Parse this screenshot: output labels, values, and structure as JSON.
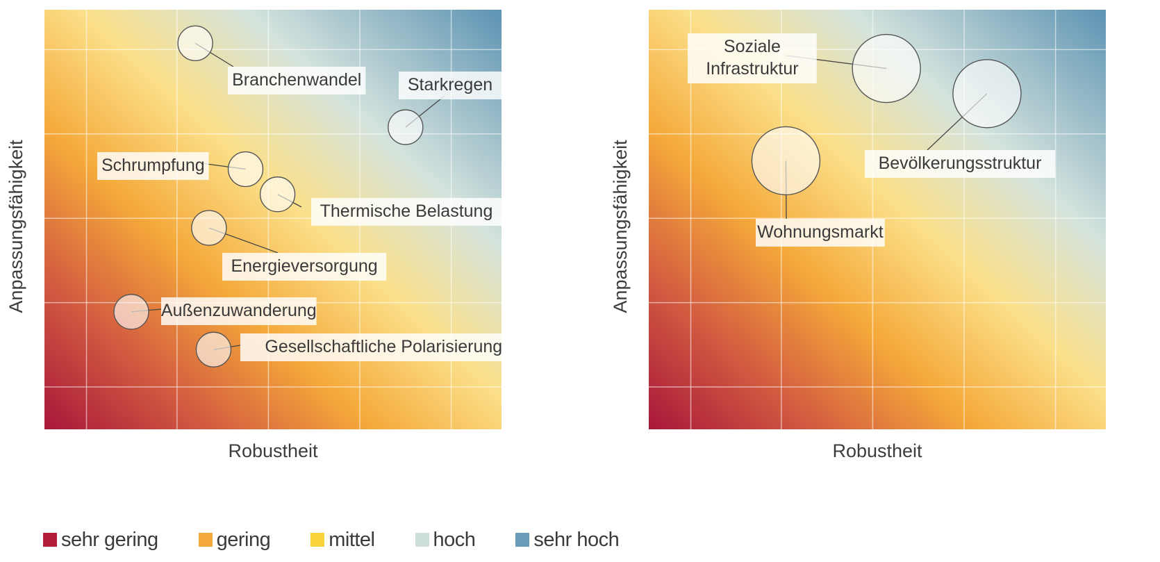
{
  "chart_data": [
    {
      "type": "scatter",
      "xlabel": "Robustheit",
      "ylabel": "Anpassungsfähigkeit",
      "xlim": [
        0,
        5
      ],
      "ylim": [
        0,
        5
      ],
      "grid": true,
      "series": [
        {
          "points": [
            {
              "label": "Branchenwandel",
              "x": 1.65,
              "y": 4.6,
              "size": 1
            },
            {
              "label": "Starkregen",
              "x": 3.95,
              "y": 3.6,
              "size": 1
            },
            {
              "label": "Schrumpfung",
              "x": 2.2,
              "y": 3.1,
              "size": 1
            },
            {
              "label": "Thermische Belastung",
              "x": 2.55,
              "y": 2.8,
              "size": 1
            },
            {
              "label": "Energieversorgung",
              "x": 1.8,
              "y": 2.4,
              "size": 1
            },
            {
              "label": "Außenzuwanderung",
              "x": 0.95,
              "y": 1.4,
              "size": 1
            },
            {
              "label": "Gesellschaftliche Polarisierung",
              "x": 1.85,
              "y": 0.95,
              "size": 1
            }
          ]
        }
      ]
    },
    {
      "type": "scatter",
      "xlabel": "Robustheit",
      "ylabel": "Anpassungsfähigkeit",
      "xlim": [
        0,
        5
      ],
      "ylim": [
        0,
        5
      ],
      "grid": true,
      "series": [
        {
          "points": [
            {
              "label": "Soziale Infrastruktur",
              "x": 2.6,
              "y": 4.3,
              "size": 2
            },
            {
              "label": "Bevölkerungsstruktur",
              "x": 3.7,
              "y": 4.0,
              "size": 2
            },
            {
              "label": "Wohnungsmarkt",
              "x": 1.5,
              "y": 3.2,
              "size": 2
            }
          ]
        }
      ]
    }
  ],
  "legend": [
    {
      "label": "sehr gering",
      "color": "#b01e3a"
    },
    {
      "label": "gering",
      "color": "#f5a93a"
    },
    {
      "label": "mittel",
      "color": "#f7d23a"
    },
    {
      "label": "hoch",
      "color": "#cfe0dc"
    },
    {
      "label": "sehr hoch",
      "color": "#6a9cb8"
    }
  ]
}
